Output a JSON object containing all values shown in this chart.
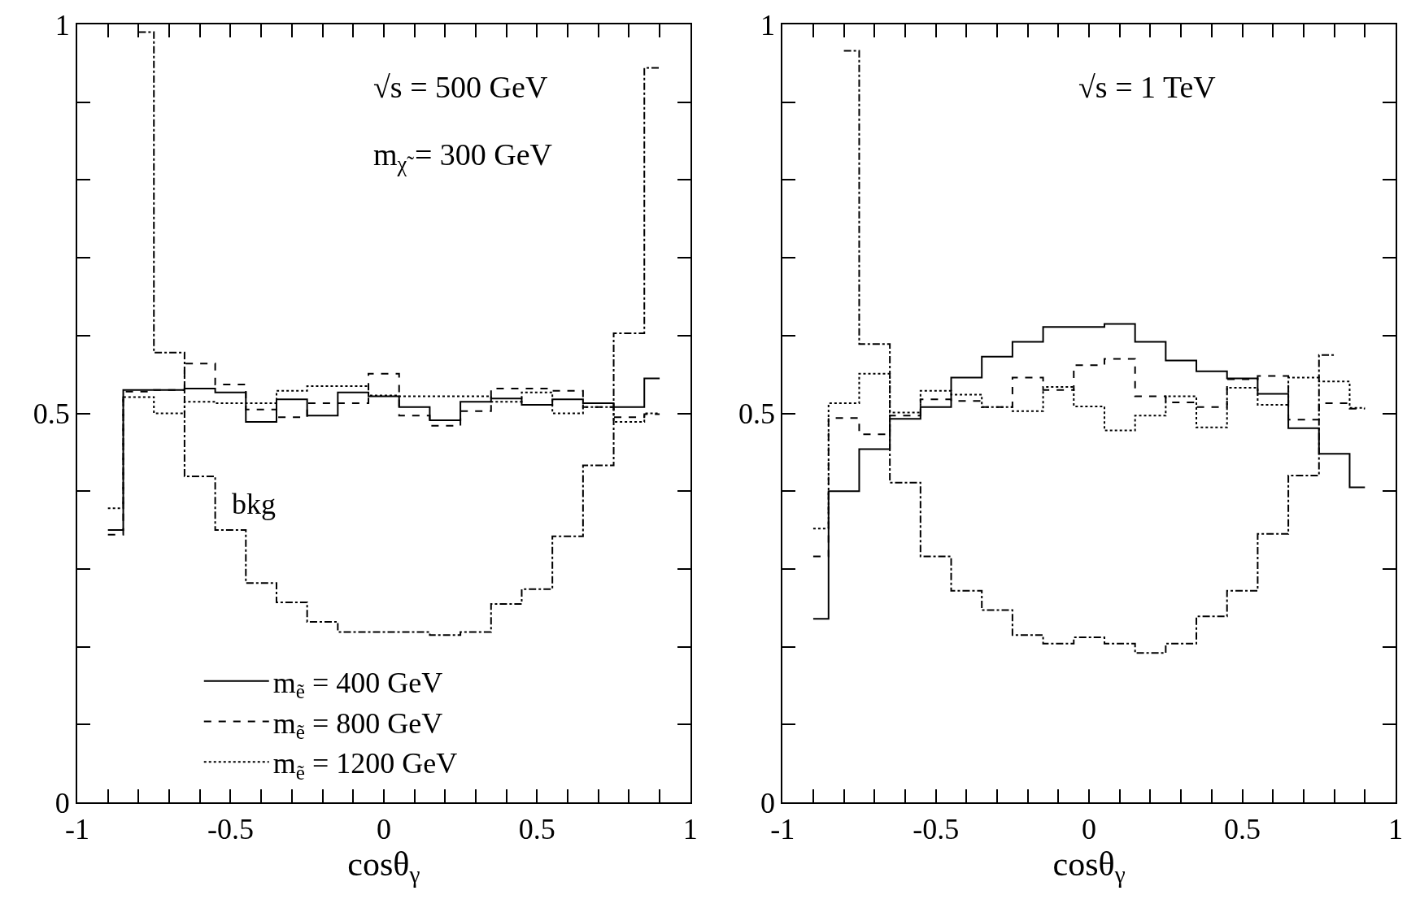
{
  "chart_data": [
    {
      "type": "step",
      "xlabel": "cosθ$_{γ}$",
      "legend": "bottom left",
      "annotations": [
        "√s = 500 GeV",
        "m$_{χ̃}$ = 300 GeV"
      ],
      "x": [
        -0.9,
        -0.8,
        -0.7,
        -0.6,
        -0.5,
        -0.4,
        -0.3,
        -0.2,
        -0.1,
        0,
        0.1,
        0.2,
        0.3,
        0.4,
        0.5,
        0.6,
        0.7,
        0.8,
        0.9
      ],
      "xlim": [
        -1,
        1
      ],
      "ylim": [
        0,
        1
      ],
      "xticks": [
        -1,
        {
          "value": -0.9,
          "label": null
        },
        {
          "value": -0.8,
          "label": null
        },
        {
          "value": -0.7,
          "label": null
        },
        {
          "value": -0.6,
          "label": null
        },
        -0.5,
        {
          "value": -0.4,
          "label": null
        },
        {
          "value": -0.3,
          "label": null
        },
        {
          "value": -0.2,
          "label": null
        },
        {
          "value": -0.1,
          "label": null
        },
        0,
        {
          "value": 0.1,
          "label": null
        },
        {
          "value": 0.2,
          "label": null
        },
        {
          "value": 0.3,
          "label": null
        },
        {
          "value": 0.4,
          "label": null
        },
        0.5,
        {
          "value": 0.6,
          "label": null
        },
        {
          "value": 0.7,
          "label": null
        },
        {
          "value": 0.8,
          "label": null
        },
        {
          "value": 0.9,
          "label": null
        },
        1
      ],
      "yticks": [
        0,
        {
          "value": 0.1,
          "label": null
        },
        {
          "value": 0.2,
          "label": null
        },
        {
          "value": 0.3,
          "label": null
        },
        {
          "value": 0.4,
          "label": null
        },
        0.5,
        {
          "value": 0.6,
          "label": null
        },
        {
          "value": 0.7,
          "label": null
        },
        {
          "value": 0.8,
          "label": null
        },
        {
          "value": 0.9,
          "label": null
        },
        1
      ],
      "series": [
        {
          "name": "m$_{ẽ}$ = 400 GeV",
          "color": "#000000",
          "line_style": "solid",
          "values": [
            0.35,
            0.53,
            0.53,
            0.532,
            0.527,
            0.489,
            0.518,
            0.497,
            0.527,
            0.522,
            0.508,
            0.491,
            0.515,
            0.519,
            0.511,
            0.518,
            0.513,
            0.508,
            0.545
          ]
        },
        {
          "name": "m$_{ẽ}$ = 800 GeV",
          "color": "#000000",
          "line_style": "dashed",
          "values": [
            0.344,
            0.528,
            0.53,
            0.564,
            0.537,
            0.505,
            0.495,
            0.513,
            0.513,
            0.551,
            0.497,
            0.484,
            0.503,
            0.532,
            0.532,
            0.529,
            0.508,
            0.495,
            0.499
          ]
        },
        {
          "name": "m$_{ẽ}$ = 1200 GeV",
          "color": "#000000",
          "line_style": "dotted",
          "values": [
            0.378,
            0.521,
            0.5,
            0.515,
            0.513,
            0.513,
            0.529,
            0.535,
            0.535,
            0.523,
            0.522,
            0.522,
            0.522,
            0.515,
            0.527,
            0.5,
            0.508,
            0.489,
            0.5
          ]
        },
        {
          "name": "bkg",
          "color": "#000000",
          "line_style": "dashdot",
          "values": [
            null,
            0.99,
            0.578,
            0.419,
            0.35,
            0.282,
            0.257,
            0.232,
            0.219,
            0.219,
            0.219,
            0.215,
            0.219,
            0.255,
            0.274,
            0.342,
            0.433,
            0.603,
            0.944
          ]
        }
      ]
    },
    {
      "type": "step",
      "xlabel": "cosθ$_{γ}$",
      "annotations": [
        "√s = 1 TeV"
      ],
      "x": [
        -0.9,
        -0.8,
        -0.7,
        -0.6,
        -0.5,
        -0.4,
        -0.3,
        -0.2,
        -0.1,
        0,
        0.1,
        0.2,
        0.3,
        0.4,
        0.5,
        0.6,
        0.7,
        0.8,
        0.9
      ],
      "xlim": [
        -1,
        1
      ],
      "ylim": [
        0,
        1
      ],
      "xticks": [
        -1,
        {
          "value": -0.9,
          "label": null
        },
        {
          "value": -0.8,
          "label": null
        },
        {
          "value": -0.7,
          "label": null
        },
        {
          "value": -0.6,
          "label": null
        },
        -0.5,
        {
          "value": -0.4,
          "label": null
        },
        {
          "value": -0.3,
          "label": null
        },
        {
          "value": -0.2,
          "label": null
        },
        {
          "value": -0.1,
          "label": null
        },
        0,
        {
          "value": 0.1,
          "label": null
        },
        {
          "value": 0.2,
          "label": null
        },
        {
          "value": 0.3,
          "label": null
        },
        {
          "value": 0.4,
          "label": null
        },
        0.5,
        {
          "value": 0.6,
          "label": null
        },
        {
          "value": 0.7,
          "label": null
        },
        {
          "value": 0.8,
          "label": null
        },
        {
          "value": 0.9,
          "label": null
        },
        1
      ],
      "yticks": [
        0,
        {
          "value": 0.1,
          "label": null
        },
        {
          "value": 0.2,
          "label": null
        },
        {
          "value": 0.3,
          "label": null
        },
        {
          "value": 0.4,
          "label": null
        },
        0.5,
        {
          "value": 0.6,
          "label": null
        },
        {
          "value": 0.7,
          "label": null
        },
        {
          "value": 0.8,
          "label": null
        },
        {
          "value": 0.9,
          "label": null
        },
        1
      ],
      "series": [
        {
          "color": "#000000",
          "line_style": "solid",
          "values": [
            0.236,
            0.4,
            0.454,
            0.493,
            0.508,
            0.546,
            0.573,
            0.592,
            0.611,
            0.611,
            0.615,
            0.592,
            0.568,
            0.554,
            0.545,
            0.525,
            0.481,
            0.448,
            0.405
          ]
        },
        {
          "color": "#000000",
          "line_style": "dashed",
          "values": [
            0.316,
            0.494,
            0.473,
            0.497,
            0.518,
            0.516,
            0.508,
            0.546,
            0.53,
            0.562,
            0.57,
            0.522,
            0.514,
            0.508,
            0.544,
            0.548,
            0.492,
            0.513,
            0.506
          ]
        },
        {
          "color": "#000000",
          "line_style": "dotted",
          "values": [
            0.352,
            0.513,
            0.551,
            0.501,
            0.529,
            0.524,
            0.508,
            0.503,
            0.534,
            0.509,
            0.478,
            0.497,
            0.522,
            0.482,
            0.533,
            0.511,
            0.546,
            0.541,
            0.507
          ]
        },
        {
          "color": "#000000",
          "line_style": "dashdot",
          "values": [
            null,
            0.966,
            0.589,
            0.411,
            0.316,
            0.272,
            0.247,
            0.215,
            0.204,
            0.212,
            0.204,
            0.192,
            0.204,
            0.239,
            0.272,
            0.345,
            0.42,
            0.575,
            null
          ]
        }
      ]
    }
  ]
}
